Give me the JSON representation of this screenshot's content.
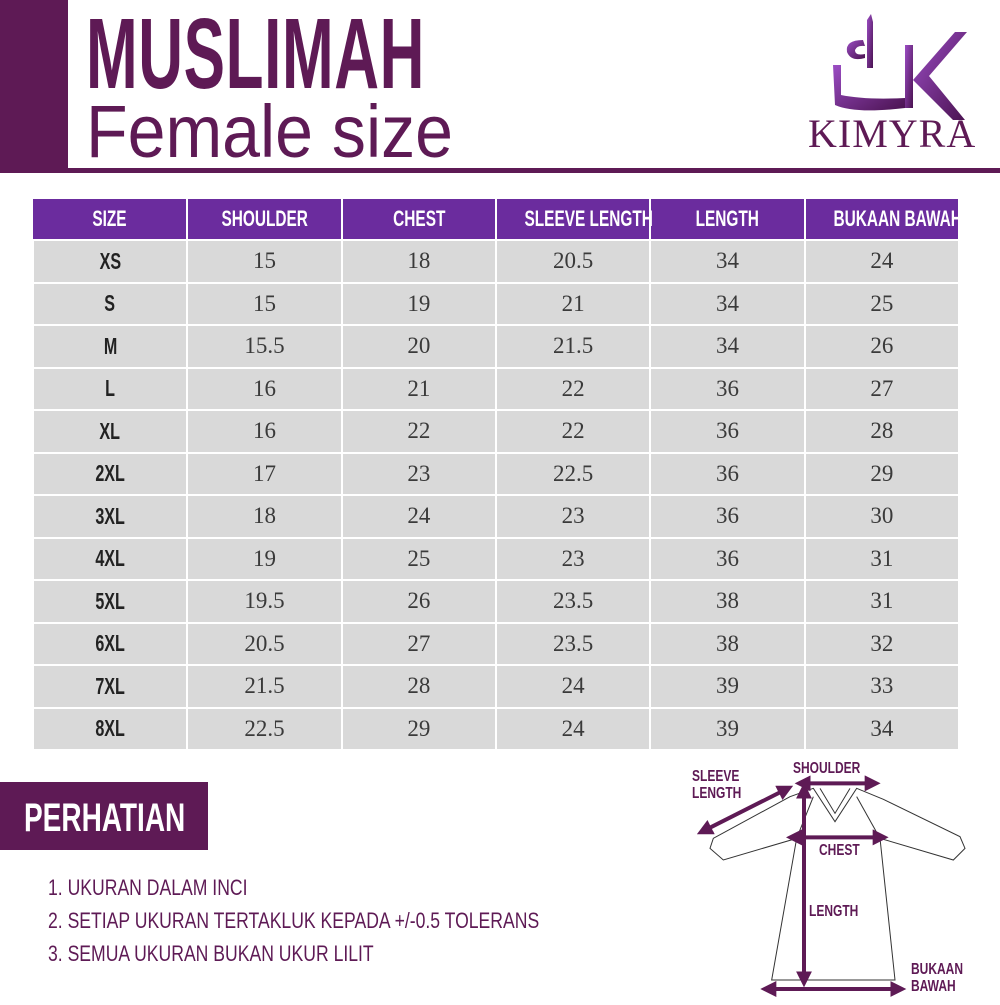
{
  "header": {
    "title": "MUSLIMAH",
    "subtitle": "Female size",
    "brand": "KIMYRA"
  },
  "colors": {
    "brand": "#5e1a55",
    "table_header": "#6b2c9e",
    "row_bg": "#d9d9d9"
  },
  "table": {
    "columns": [
      "SIZE",
      "SHOULDER",
      "CHEST",
      "SLEEVE LENGTH",
      "LENGTH",
      "BUKAAN BAWAH"
    ],
    "rows": [
      [
        "XS",
        "15",
        "18",
        "20.5",
        "34",
        "24"
      ],
      [
        "S",
        "15",
        "19",
        "21",
        "34",
        "25"
      ],
      [
        "M",
        "15.5",
        "20",
        "21.5",
        "34",
        "26"
      ],
      [
        "L",
        "16",
        "21",
        "22",
        "36",
        "27"
      ],
      [
        "XL",
        "16",
        "22",
        "22",
        "36",
        "28"
      ],
      [
        "2XL",
        "17",
        "23",
        "22.5",
        "36",
        "29"
      ],
      [
        "3XL",
        "18",
        "24",
        "23",
        "36",
        "30"
      ],
      [
        "4XL",
        "19",
        "25",
        "23",
        "36",
        "31"
      ],
      [
        "5XL",
        "19.5",
        "26",
        "23.5",
        "38",
        "31"
      ],
      [
        "6XL",
        "20.5",
        "27",
        "23.5",
        "38",
        "32"
      ],
      [
        "7XL",
        "21.5",
        "28",
        "24",
        "39",
        "33"
      ],
      [
        "8XL",
        "22.5",
        "29",
        "24",
        "39",
        "34"
      ]
    ]
  },
  "notice": {
    "heading": "PERHATIAN",
    "items": [
      "1. UKURAN DALAM INCI",
      "2. SETIAP UKURAN TERTAKLUK KEPADA +/-0.5 TOLERANS",
      "3. SEMUA UKURAN BUKAN UKUR LILIT"
    ]
  },
  "diagram": {
    "sleeve_line1": "SLEEVE",
    "sleeve_line2": "LENGTH",
    "shoulder": "SHOULDER",
    "chest": "CHEST",
    "length": "LENGTH",
    "bottom_line1": "BUKAAN",
    "bottom_line2": "BAWAH"
  }
}
